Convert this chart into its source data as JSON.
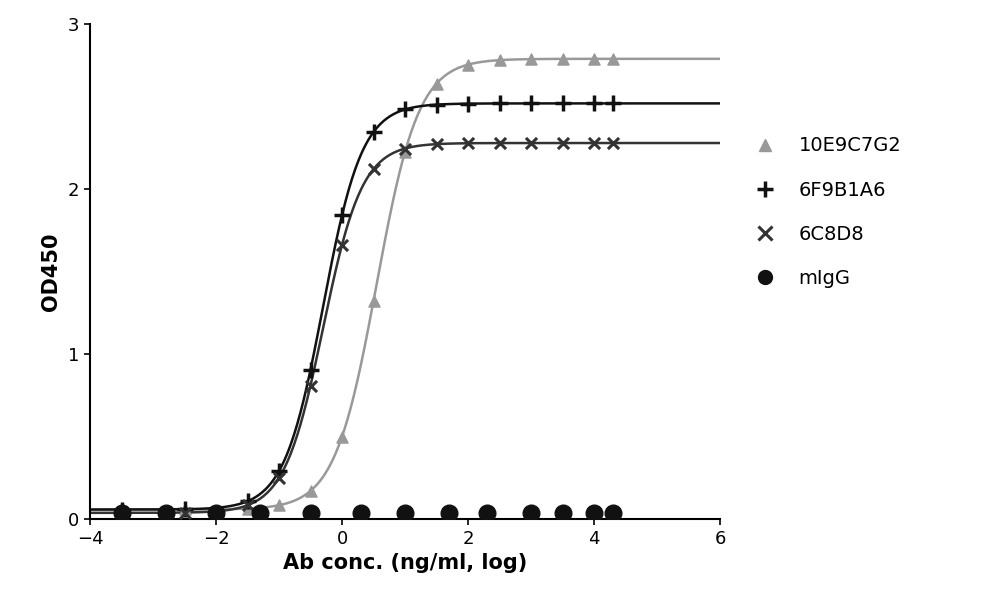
{
  "title": "",
  "xlabel": "Ab conc. (ng/ml, log)",
  "ylabel": "OD450",
  "xlim": [
    -4,
    6
  ],
  "ylim": [
    0,
    3
  ],
  "xticks": [
    -4,
    -2,
    0,
    2,
    4,
    6
  ],
  "yticks": [
    0,
    1,
    2,
    3
  ],
  "background_color": "#ffffff",
  "series": [
    {
      "label": "10E9C7G2",
      "color": "#999999",
      "marker": "^",
      "marker_size": 8,
      "line_width": 1.8,
      "x_data": [
        -3.5,
        -2.5,
        -1.5,
        -1.0,
        -0.5,
        0.0,
        0.5,
        1.0,
        1.5,
        2.0,
        2.5,
        3.0,
        3.5,
        4.0,
        4.3
      ],
      "ec50": 0.55,
      "top": 2.79,
      "bottom": 0.06,
      "hill": 1.3
    },
    {
      "label": "6F9B1A6",
      "color": "#111111",
      "marker": "P",
      "marker_size": 8,
      "line_width": 1.8,
      "x_data": [
        -3.5,
        -2.5,
        -1.5,
        -1.0,
        -0.5,
        0.0,
        0.5,
        1.0,
        1.5,
        2.0,
        2.5,
        3.0,
        3.5,
        4.0,
        4.3
      ],
      "ec50": -0.3,
      "top": 2.52,
      "bottom": 0.06,
      "hill": 1.4
    },
    {
      "label": "6C8D8",
      "color": "#333333",
      "marker": "x",
      "marker_size": 8,
      "line_width": 1.8,
      "x_data": [
        -3.5,
        -2.5,
        -1.5,
        -1.0,
        -0.5,
        0.0,
        0.5,
        1.0,
        1.5,
        2.0,
        2.5,
        3.0,
        3.5,
        4.0,
        4.3
      ],
      "ec50": -0.3,
      "top": 2.28,
      "bottom": 0.04,
      "hill": 1.4
    },
    {
      "label": "mIgG",
      "color": "#111111",
      "marker": "o",
      "marker_size": 10,
      "line_width": 0,
      "x_data": [
        -3.5,
        -2.8,
        -2.0,
        -1.3,
        -0.5,
        0.3,
        1.0,
        1.7,
        2.3,
        3.0,
        3.5,
        4.0,
        4.3
      ],
      "y_data": [
        0.04,
        0.04,
        0.04,
        0.04,
        0.04,
        0.04,
        0.04,
        0.04,
        0.04,
        0.04,
        0.04,
        0.04,
        0.04
      ],
      "ec50": null,
      "top": null,
      "bottom": null,
      "hill": null
    }
  ],
  "legend_fontsize": 14,
  "axis_label_fontsize": 15,
  "tick_fontsize": 13
}
